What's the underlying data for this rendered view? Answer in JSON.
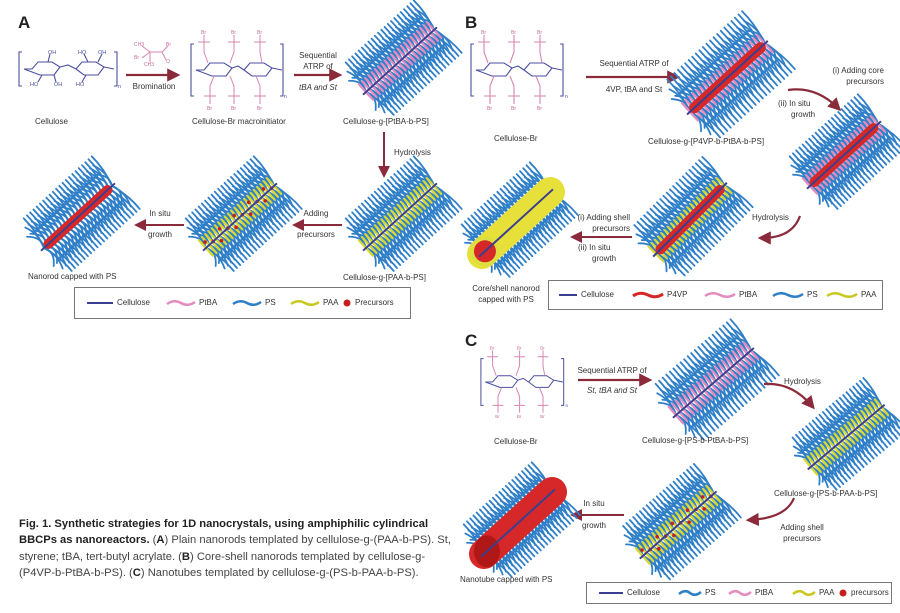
{
  "colors": {
    "cellulose": "#3a3f8f",
    "ptba": "#e48cc0",
    "ps": "#2f7fc8",
    "paa": "#d8d830",
    "p4vp": "#d62828",
    "precursors": "#c81e1e",
    "arrow": "#8b2a3a",
    "chem_pink": "#d986b0",
    "chem_blue": "#4a4fa0"
  },
  "panel_a": {
    "letter": "A",
    "cellulose_label": "Cellulose",
    "bromination_label": "Bromination",
    "macroinitiator_label": "Cellulose-Br macroinitiator",
    "atrp_label_1": "Sequential",
    "atrp_label_2": "ATRP of",
    "atrp_label_3": "tBA and St",
    "brush_label": "Cellulose-g-[PtBA-b-PS]",
    "hydrolysis_label": "Hydrolysis",
    "paa_label": "Cellulose-g-[PAA-b-PS]",
    "adding_1": "Adding",
    "adding_2": "precursors",
    "insitu_1": "In situ",
    "insitu_2": "growth",
    "nanorod_label": "Nanorod capped with PS",
    "legend": [
      "Cellulose",
      "PtBA",
      "PS",
      "PAA",
      "Precursors"
    ]
  },
  "panel_b": {
    "letter": "B",
    "cellulose_br_label": "Cellulose-Br",
    "atrp_label_1": "Sequential ATRP of",
    "atrp_label_2": "4VP, tBA and St",
    "brush_label": "Cellulose-g-[P4VP-b-PtBA-b-PS]",
    "core_1": "(i) Adding core",
    "core_2": "precursors",
    "core_3": "(ii)  In situ",
    "core_4": "growth",
    "hydrolysis_label": "Hydrolysis",
    "shell_1": "(i) Adding shell",
    "shell_2": "precursors",
    "shell_3": "(ii)  In situ",
    "shell_4": "growth",
    "product_1": "Core/shell nanorod",
    "product_2": "capped with PS",
    "legend": [
      "Cellulose",
      "P4VP",
      "PtBA",
      "PS",
      "PAA"
    ]
  },
  "panel_c": {
    "letter": "C",
    "cellulose_br_label": "Cellulose-Br",
    "atrp_label_1": "Sequential ATRP of",
    "atrp_label_2": "St, tBA and St",
    "brush_label": "Cellulose-g-[PS-b-PtBA-b-PS]",
    "hydrolysis_label": "Hydrolysis",
    "paa_label": "Cellulose-g-[PS-b-PAA-b-PS]",
    "shell_1": "Adding shell",
    "shell_2": "precursors",
    "insitu_1": "In situ",
    "insitu_2": "growth",
    "product_label": "Nanotube capped with PS",
    "legend": [
      "Cellulose",
      "PS",
      "PtBA",
      "PAA",
      "precursors"
    ]
  },
  "chem": {
    "oh": "OH",
    "ho": "HO",
    "br": "Br",
    "o": "O",
    "n": "n",
    "ch3": "CH3"
  },
  "caption": {
    "fig": "Fig. 1. Synthetic strategies for 1D nanocrystals, using amphiphilic cylindrical BBCPs as nanoreactors.",
    "a_letter": "A",
    "a_text": "Plain nanorods templated by cellulose-g-(PAA-b-PS). St, styrene; tBA, tert-butyl acrylate.",
    "b_letter": "B",
    "b_text": "Core-shell nanorods templated by cellulose-g-(P4VP-b-PtBA-b-PS).",
    "c_letter": "C",
    "c_text": "Nanotubes templated by cellulose-g-(PS-b-PAA-b-PS)."
  }
}
